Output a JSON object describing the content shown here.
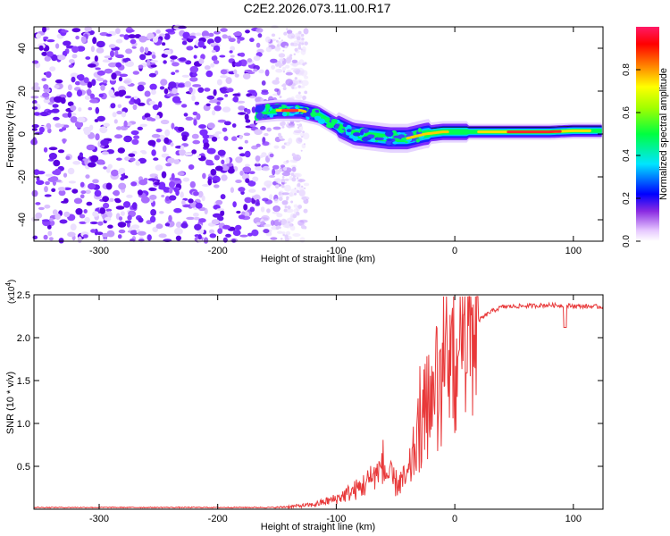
{
  "title": "C2E2.2026.073.11.00.R17",
  "chart_data": [
    {
      "type": "heatmap",
      "xlabel": "Height of straight line (km)",
      "ylabel": "Frequency (Hz)",
      "xlim": [
        -355,
        125
      ],
      "ylim": [
        -50,
        50
      ],
      "xticks": [
        -300,
        -200,
        -100,
        0,
        100
      ],
      "yticks": [
        -40,
        -20,
        0,
        20,
        40
      ],
      "ridge_center_hz": [
        [
          -168,
          10
        ],
        [
          -150,
          11
        ],
        [
          -130,
          11
        ],
        [
          -115,
          9
        ],
        [
          -100,
          4
        ],
        [
          -85,
          0
        ],
        [
          -70,
          -1
        ],
        [
          -55,
          -2
        ],
        [
          -40,
          -2
        ],
        [
          -25,
          0
        ],
        [
          -10,
          1
        ],
        [
          0,
          1
        ],
        [
          20,
          1
        ],
        [
          50,
          1
        ],
        [
          80,
          1
        ],
        [
          100,
          1.5
        ],
        [
          125,
          1.5
        ]
      ],
      "noise_region_km": [
        -355,
        -140
      ],
      "grid": false,
      "colorbar": {
        "label": "Normalized spectral amplitude",
        "range": [
          0,
          1
        ],
        "ticks": [
          "0.0",
          "0.2",
          "0.4",
          "0.6",
          "0.8"
        ]
      }
    },
    {
      "type": "line",
      "xlabel": "Height of straight line (km)",
      "ylabel": "SNR (10 * v/v)",
      "multiplier_label": "(x10",
      "multiplier_exp": "4",
      "multiplier_close": ")",
      "xlim": [
        -355,
        125
      ],
      "ylim": [
        0,
        2.5
      ],
      "xticks": [
        -300,
        -200,
        -100,
        0,
        100
      ],
      "yticks": [
        "0.5",
        "1.0",
        "1.5",
        "2.0",
        "2.5"
      ],
      "series": [
        {
          "color": "#e8393a",
          "envelope": [
            [
              -355,
              0.02
            ],
            [
              -150,
              0.02
            ],
            [
              -120,
              0.05
            ],
            [
              -100,
              0.12
            ],
            [
              -80,
              0.25
            ],
            [
              -60,
              0.45
            ],
            [
              -50,
              0.3
            ],
            [
              -40,
              0.35
            ],
            [
              -30,
              0.9
            ],
            [
              -20,
              1.3
            ],
            [
              -10,
              1.5
            ],
            [
              0,
              1.7
            ],
            [
              10,
              2.0
            ],
            [
              20,
              2.2
            ],
            [
              30,
              2.3
            ],
            [
              40,
              2.36
            ],
            [
              60,
              2.37
            ],
            [
              80,
              2.38
            ],
            [
              100,
              2.37
            ],
            [
              125,
              2.36
            ]
          ],
          "notes": "noisy spectral SNR trace"
        }
      ]
    }
  ]
}
